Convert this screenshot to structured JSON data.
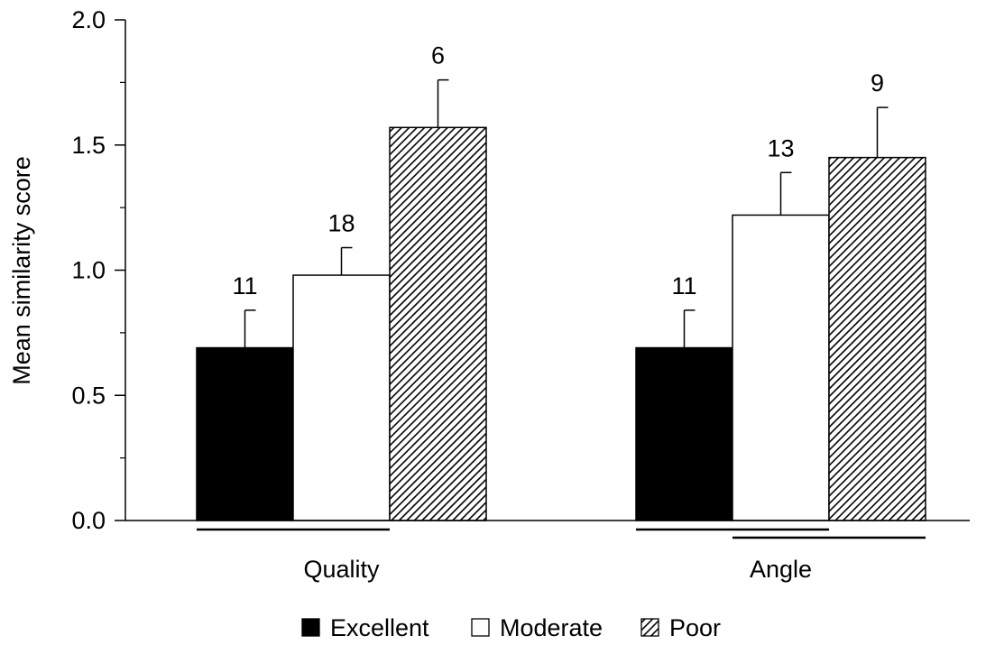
{
  "chart_data": {
    "type": "bar",
    "title": "",
    "xlabel": "",
    "ylabel": "Mean similarity score",
    "ylim": [
      0,
      2.0
    ],
    "yticks": [
      "0.0",
      "0.5",
      "1.0",
      "1.5",
      "2.0"
    ],
    "grid": false,
    "legend_position": "bottom-center",
    "categories": [
      "Quality",
      "Angle"
    ],
    "series": [
      {
        "name": "Excellent",
        "fill": "solid",
        "color": "#000000",
        "values": [
          0.69,
          0.69
        ],
        "error": [
          0.15,
          0.15
        ],
        "labels": [
          "11",
          "11"
        ]
      },
      {
        "name": "Moderate",
        "fill": "none",
        "color": "#ffffff",
        "values": [
          0.98,
          1.22
        ],
        "error": [
          0.11,
          0.17
        ],
        "labels": [
          "18",
          "13"
        ]
      },
      {
        "name": "Poor",
        "fill": "hatched",
        "color": "#888888",
        "values": [
          1.57,
          1.45
        ],
        "error": [
          0.19,
          0.2
        ],
        "labels": [
          "6",
          "9"
        ]
      }
    ],
    "significance_lines": [
      {
        "category": 0,
        "from_series": 0,
        "to_series": 1,
        "row": 0
      },
      {
        "category": 1,
        "from_series": 0,
        "to_series": 1,
        "row": 0
      },
      {
        "category": 1,
        "from_series": 1,
        "to_series": 2,
        "row": 1
      }
    ]
  }
}
